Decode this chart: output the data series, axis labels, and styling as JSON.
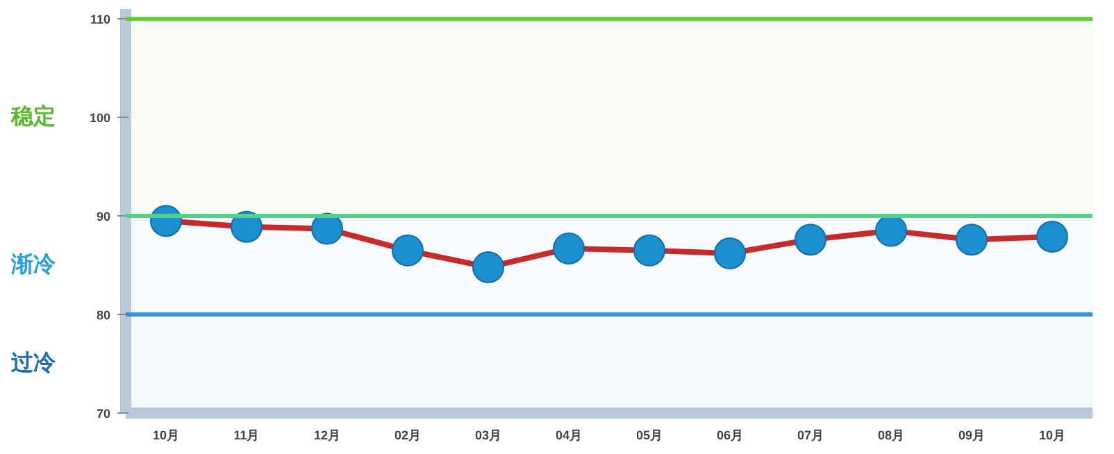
{
  "chart_data": {
    "type": "line",
    "categories": [
      "10月",
      "11月",
      "12月",
      "02月",
      "03月",
      "04月",
      "05月",
      "06月",
      "07月",
      "08月",
      "09月",
      "10月"
    ],
    "series": [
      {
        "color": "#c62a2a",
        "colors": [
          "#1b8fd0",
          "#1b8fd0",
          "#1b8fd0",
          "#1b8fd0",
          "#1b8fd0",
          "#1b8fd0",
          "#1b8fd0",
          "#1b8fd0",
          "#1b8fd0",
          "#1b8fd0",
          "#1b8fd0",
          "#1b8fd0"
        ],
        "values": [
          89.5,
          88.9,
          88.7,
          86.5,
          84.8,
          86.7,
          86.5,
          86.2,
          87.6,
          88.5,
          87.6,
          87.9
        ]
      }
    ],
    "marker": "circle",
    "ylim": [
      70,
      111
    ],
    "yticks": [
      70,
      80,
      90,
      100,
      110
    ],
    "grid": false,
    "ref_lines": [
      {
        "axis": "y",
        "value": 110,
        "color": "#66cc33"
      },
      {
        "axis": "y",
        "value": 90,
        "color": "#55d088"
      },
      {
        "axis": "y",
        "value": 80,
        "color": "#3a8fd8"
      }
    ],
    "bands": [
      {
        "axis": "y",
        "from": 90,
        "to": 110,
        "label": "稳定",
        "color": "#5ab92e"
      },
      {
        "axis": "y",
        "from": 80,
        "to": 90,
        "label": "渐冷",
        "color": "#2aa0dc"
      },
      {
        "axis": "y",
        "from": 70,
        "to": 80,
        "label": "过冷",
        "color": "#1b6fb8"
      }
    ]
  }
}
